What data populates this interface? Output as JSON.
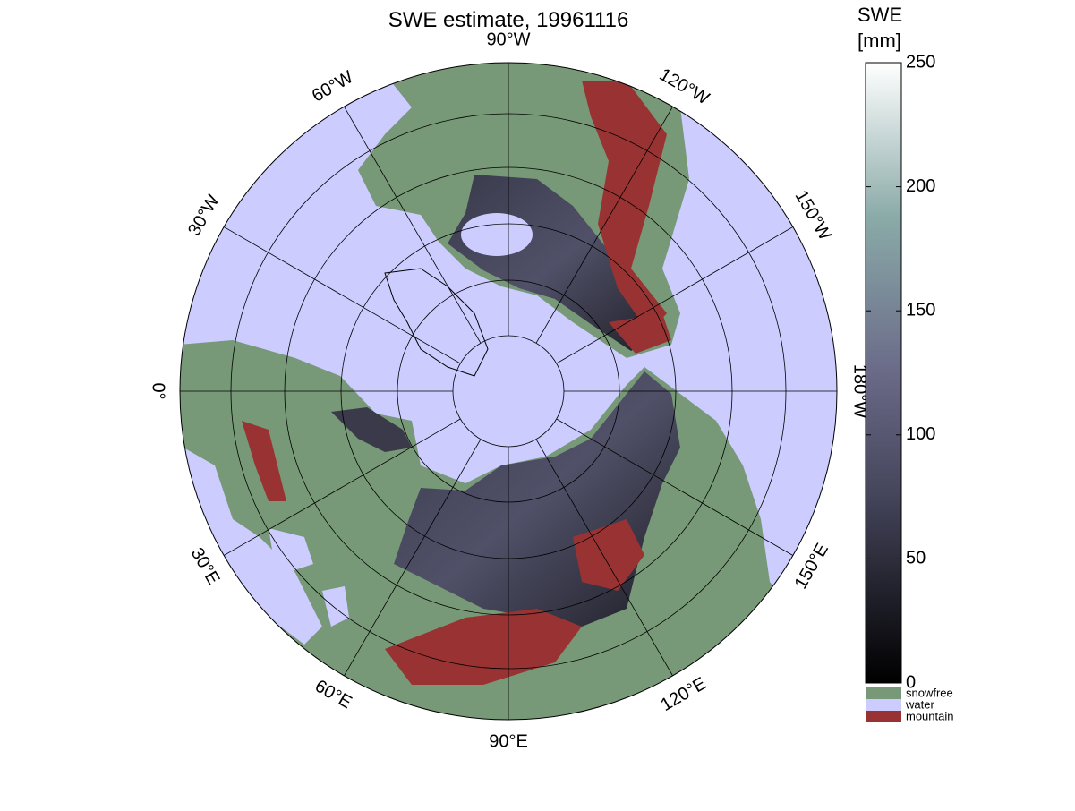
{
  "title": "SWE estimate, 19961116",
  "meridian_labels": [
    "0°",
    "30°E",
    "60°E",
    "90°E",
    "120°E",
    "150°E",
    "180°W",
    "150°W",
    "120°W",
    "90°W",
    "60°W",
    "30°W"
  ],
  "colorbar": {
    "label": [
      "SWE",
      "[mm]"
    ],
    "lim": [
      0,
      250
    ],
    "ticks": [
      0,
      50,
      100,
      150,
      200,
      250
    ]
  },
  "legend": [
    {
      "label": "snowfree",
      "color": "#779977"
    },
    {
      "label": "water",
      "color": "#ccccff"
    },
    {
      "label": "mountain",
      "color": "#993333"
    }
  ]
}
